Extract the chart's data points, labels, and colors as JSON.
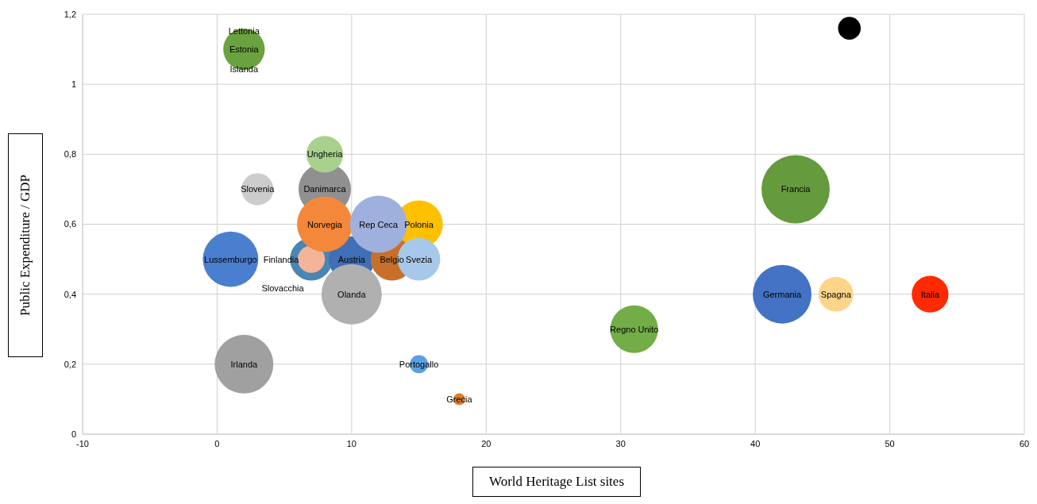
{
  "chart_data": {
    "type": "bubble",
    "xlabel": "World Heritage List sites",
    "ylabel": "Public Expenditure / GDP",
    "xlim": [
      -10,
      60
    ],
    "xticks": [
      -10,
      0,
      10,
      20,
      30,
      40,
      50,
      60
    ],
    "ylim": [
      0,
      1.2
    ],
    "yticks": [
      0,
      {
        "value": 0.2,
        "label": "0,2"
      },
      {
        "value": 0.4,
        "label": "0,4"
      },
      {
        "value": 0.6,
        "label": "0,6"
      },
      {
        "value": 0.8,
        "label": "0,8"
      },
      {
        "value": 1,
        "label": "1"
      },
      {
        "value": 1.2,
        "label": "1,2"
      }
    ],
    "grid": true,
    "legend": false,
    "annotations": [
      {
        "text": "Lettonia",
        "x": 2,
        "y": 1.1
      },
      {
        "text": "Islanda",
        "x": 2,
        "y": 1.1
      }
    ],
    "series": [
      {
        "name": "Lussemburgo",
        "color": "#4a7fcf",
        "x": [
          1
        ],
        "values": [
          0.5
        ],
        "sizes": [
          0.66
        ]
      },
      {
        "name": "Irlanda",
        "color": "#a0a0a0",
        "x": [
          2
        ],
        "values": [
          0.2
        ],
        "sizes": [
          0.74
        ]
      },
      {
        "name": "Slovenia",
        "color": "#cccccc",
        "x": [
          3
        ],
        "values": [
          0.7
        ],
        "sizes": [
          0.22
        ]
      },
      {
        "name": "Danimarca",
        "color": "#909090",
        "x": [
          8
        ],
        "values": [
          0.7
        ],
        "sizes": [
          0.59
        ]
      },
      {
        "name": "Ungheria",
        "color": "#a9d18e",
        "x": [
          8
        ],
        "values": [
          0.8
        ],
        "sizes": [
          0.29
        ]
      },
      {
        "name": "Polonia",
        "color": "#ffc000",
        "x": [
          15
        ],
        "values": [
          0.6
        ],
        "sizes": [
          0.49
        ]
      },
      {
        "name": "Slovacchia",
        "color": "#4a86b4",
        "x": [
          7
        ],
        "values": [
          0.5
        ],
        "sizes": [
          0.39
        ]
      },
      {
        "name": "Finlandia",
        "color": "#f4b49a",
        "x": [
          7
        ],
        "values": [
          0.5
        ],
        "sizes": [
          0.16
        ]
      },
      {
        "name": "Austria",
        "color": "#3f6fb5",
        "x": [
          10
        ],
        "values": [
          0.5
        ],
        "sizes": [
          0.45
        ]
      },
      {
        "name": "Norvegia",
        "color": "#f4883a",
        "x": [
          8
        ],
        "values": [
          0.6
        ],
        "sizes": [
          0.66
        ]
      },
      {
        "name": "Belgio",
        "color": "#c8702a",
        "x": [
          13
        ],
        "values": [
          0.5
        ],
        "sizes": [
          0.39
        ]
      },
      {
        "name": "Rep Ceca",
        "color": "#9fb0dc",
        "x": [
          12
        ],
        "values": [
          0.6
        ],
        "sizes": [
          0.7
        ]
      },
      {
        "name": "Svezia",
        "color": "#a8c8ea",
        "x": [
          15
        ],
        "values": [
          0.5
        ],
        "sizes": [
          0.39
        ]
      },
      {
        "name": "Olanda",
        "color": "#b0b0b0",
        "x": [
          10
        ],
        "values": [
          0.4
        ],
        "sizes": [
          0.78
        ]
      },
      {
        "name": "Portogallo",
        "color": "#5aa0e0",
        "x": [
          15
        ],
        "values": [
          0.2
        ],
        "sizes": [
          0.07
        ]
      },
      {
        "name": "Grecia",
        "color": "#d97d30",
        "x": [
          18
        ],
        "values": [
          0.1
        ],
        "sizes": [
          0.03
        ]
      },
      {
        "name": "Regno Unito",
        "color": "#72ad47",
        "x": [
          31
        ],
        "values": [
          0.3
        ],
        "sizes": [
          0.49
        ]
      },
      {
        "name": "Germania",
        "color": "#4472c4",
        "x": [
          42
        ],
        "values": [
          0.4
        ],
        "sizes": [
          0.74
        ]
      },
      {
        "name": "Francia",
        "color": "#659a3d",
        "x": [
          43
        ],
        "values": [
          0.7
        ],
        "sizes": [
          1
        ]
      },
      {
        "name": "Spagna",
        "color": "#fcd58a",
        "x": [
          46
        ],
        "values": [
          0.4
        ],
        "sizes": [
          0.26
        ]
      },
      {
        "name": "Italia",
        "color": "#ff2a00",
        "x": [
          53
        ],
        "values": [
          0.4
        ],
        "sizes": [
          0.29
        ]
      },
      {
        "name": "Estonia",
        "color": "#6aa23f",
        "x": [
          2
        ],
        "values": [
          1.1
        ],
        "sizes": [
          0.37
        ]
      },
      {
        "color": "#000000",
        "x": [
          47
        ],
        "values": [
          1.16
        ],
        "sizes": [
          0.11
        ]
      }
    ]
  }
}
